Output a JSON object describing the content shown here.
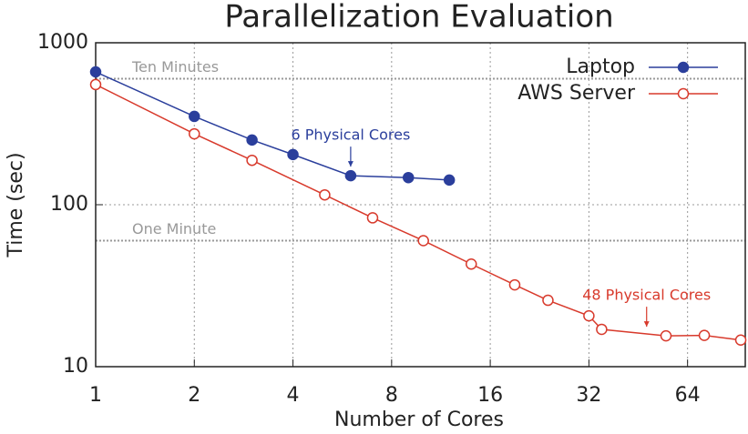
{
  "chart_data": {
    "type": "line",
    "title": "Parallelization Evaluation",
    "x_label": "Number of Cores",
    "y_label": "Time (sec)",
    "xscale": "log",
    "yscale": "log",
    "grid": true,
    "legend": "upper right",
    "xlim": [
      1,
      96
    ],
    "xticks": [
      1,
      2,
      4,
      8,
      16,
      32,
      64
    ],
    "ylim": [
      10,
      1000
    ],
    "yticks": [
      10,
      100,
      1000
    ],
    "series": [
      {
        "name": "Laptop",
        "color": "#2b3f9c",
        "marker": "filled",
        "x": [
          1,
          2,
          3,
          4,
          6,
          9,
          12
        ],
        "values": [
          661,
          351,
          251,
          204,
          151,
          147,
          142
        ]
      },
      {
        "name": "AWS Server",
        "color": "#d83a2c",
        "marker": "open",
        "x": [
          1,
          2,
          3,
          5,
          7,
          10,
          14,
          19,
          24,
          32,
          35,
          55,
          72,
          93
        ],
        "values": [
          552,
          274,
          188,
          115,
          83,
          60,
          43,
          32,
          25.7,
          20.6,
          17,
          15.5,
          15.6,
          14.6
        ]
      }
    ],
    "reference_lines": [
      {
        "value": 600,
        "label": "Ten Minutes"
      },
      {
        "value": 60,
        "label": "One Minute"
      }
    ],
    "annotations": [
      {
        "text": "6 Physical Cores",
        "x": 6,
        "series": 0
      },
      {
        "text": "48 Physical Cores",
        "x": 48,
        "series": 1
      }
    ]
  }
}
